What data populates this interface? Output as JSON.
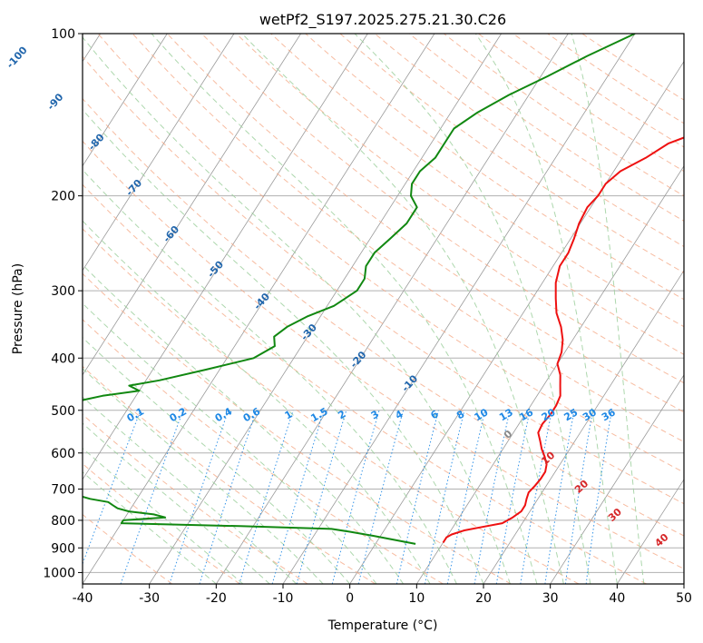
{
  "chart_data": {
    "type": "line",
    "title": "wetPf2_S197.2025.275.21.30.C26",
    "xlabel": "Temperature (°C)",
    "ylabel": "Pressure (hPa)",
    "xlim": [
      -40,
      50
    ],
    "ylim": [
      1050,
      100
    ],
    "y_scale": "log",
    "grid": true,
    "x_ticks": [
      -40,
      -30,
      -20,
      -10,
      0,
      10,
      20,
      30,
      40,
      50
    ],
    "y_ticks": [
      100,
      200,
      300,
      400,
      500,
      600,
      700,
      800,
      900,
      1000
    ],
    "colors": {
      "temperature": "#ee1111",
      "dewpoint": "#118811",
      "isotherm": "#888888",
      "dry_adiabat": "#f4a582",
      "moist_adiabat": "#9fd09f",
      "mixing_ratio": "#1e88e5",
      "isotherm_label": "#2166ac",
      "dry_adiabat_label": "#d62728"
    },
    "series": [
      {
        "key": "temperature",
        "p": [
          880,
          860,
          850,
          835,
          825,
          810,
          790,
          770,
          750,
          730,
          710,
          690,
          670,
          650,
          630,
          610,
          590,
          570,
          550,
          530,
          510,
          490,
          470,
          450,
          430,
          410,
          390,
          370,
          350,
          330,
          310,
          290,
          270,
          255,
          240,
          225,
          210,
          200,
          190,
          180,
          170,
          160,
          150,
          140,
          130,
          120,
          110,
          100
        ],
        "t": [
          10,
          10,
          10.5,
          12,
          14,
          17,
          18,
          18.7,
          18.7,
          18.3,
          18,
          18.3,
          18.5,
          18.5,
          18,
          17,
          15.8,
          14.8,
          13.7,
          13.5,
          13.8,
          13.8,
          13.5,
          12.5,
          11.5,
          10,
          9.5,
          8.5,
          7,
          5,
          3.5,
          2,
          1,
          1,
          0.5,
          -0.2,
          -0.5,
          0,
          0,
          1,
          3.5,
          5.5,
          10,
          14,
          16,
          17,
          17.5,
          18
        ]
      },
      {
        "key": "dewpoint",
        "p": [
          885,
          870,
          855,
          840,
          830,
          820,
          810,
          800,
          790,
          780,
          770,
          760,
          750,
          740,
          730,
          720,
          710,
          700,
          650,
          600,
          550,
          520,
          505,
          500,
          495,
          490,
          480,
          470,
          460,
          450,
          440,
          420,
          400,
          380,
          365,
          350,
          335,
          320,
          300,
          285,
          270,
          255,
          240,
          225,
          210,
          200,
          190,
          180,
          170,
          160,
          150,
          140,
          130,
          120,
          110,
          100
        ],
        "td": [
          6,
          2.5,
          -1,
          -5,
          -8,
          -22,
          -40,
          -40,
          -34,
          -36,
          -40,
          -42,
          -43,
          -44,
          -47,
          -49,
          -50,
          -52,
          -55,
          -60,
          -65,
          -70,
          -75,
          -70,
          -66,
          -64,
          -58,
          -55,
          -50,
          -52,
          -48,
          -42,
          -36,
          -34,
          -35,
          -34,
          -32,
          -29,
          -27,
          -27,
          -28,
          -28,
          -27,
          -26,
          -26,
          -28,
          -29,
          -29,
          -28,
          -28,
          -28,
          -26,
          -23,
          -19,
          -15,
          -10
        ]
      }
    ],
    "isotherm_labels": [
      -100,
      -90,
      -80,
      -70,
      -60,
      -50,
      -40,
      -30,
      -20,
      -10
    ],
    "mixing_ratio_labels": [
      "0.1",
      "0.2",
      "0.4",
      "0.6",
      "1",
      "1.5",
      "2",
      "3",
      "4",
      "6",
      "8",
      "10",
      "13",
      "16",
      "20",
      "25",
      "30",
      "36"
    ],
    "dry_adiabat_labels": [
      "0",
      "10",
      "20",
      "30",
      "40"
    ]
  }
}
